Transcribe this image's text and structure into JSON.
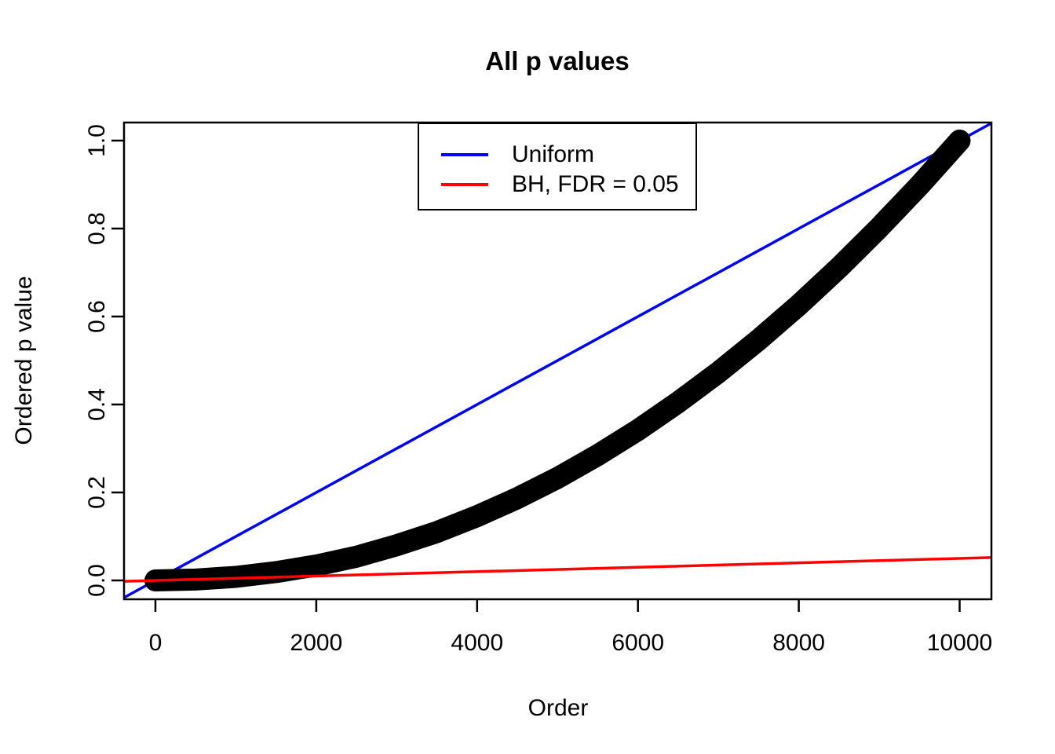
{
  "title": "All p values",
  "axes": {
    "x_label": "Order",
    "y_label": "Ordered p value",
    "x_tick_labels": [
      "0",
      "2000",
      "4000",
      "6000",
      "8000",
      "10000"
    ],
    "y_tick_labels": [
      "0.0",
      "0.2",
      "0.4",
      "0.6",
      "0.8",
      "1.0"
    ]
  },
  "legend": {
    "items": [
      {
        "label": "Uniform",
        "color": "#0000ff"
      },
      {
        "label": "BH, FDR = 0.05",
        "color": "#ff0000"
      }
    ]
  },
  "chart_data": {
    "type": "scatter",
    "title": "All p values",
    "xlabel": "Order",
    "ylabel": "Ordered p value",
    "xlim": [
      0,
      10000
    ],
    "ylim": [
      0,
      1
    ],
    "x_ticks": [
      0,
      2000,
      4000,
      6000,
      8000,
      10000
    ],
    "y_ticks": [
      0.0,
      0.2,
      0.4,
      0.6,
      0.8,
      1.0
    ],
    "grid": false,
    "legend_position": "top-center-inside",
    "series": [
      {
        "name": "Ordered p values",
        "type": "points",
        "color": "#000000",
        "marker": "large-filled-dots",
        "x": [
          0,
          500,
          1000,
          1500,
          2000,
          2500,
          3000,
          3500,
          4000,
          4500,
          5000,
          5500,
          6000,
          6500,
          7000,
          7500,
          8000,
          8500,
          9000,
          9500,
          10000
        ],
        "y": [
          0.0,
          0.002,
          0.008,
          0.019,
          0.034,
          0.054,
          0.08,
          0.11,
          0.146,
          0.187,
          0.233,
          0.285,
          0.342,
          0.405,
          0.473,
          0.547,
          0.626,
          0.711,
          0.802,
          0.898,
          1.0
        ]
      },
      {
        "name": "Uniform",
        "type": "line",
        "color": "#0000ff",
        "x": [
          0,
          10000
        ],
        "y": [
          0,
          1
        ],
        "extends_to_plot_edges": true
      },
      {
        "name": "BH, FDR = 0.05",
        "type": "line",
        "color": "#ff0000",
        "x": [
          0,
          10000
        ],
        "y": [
          0,
          0.05
        ],
        "extends_to_plot_edges": true
      }
    ]
  }
}
